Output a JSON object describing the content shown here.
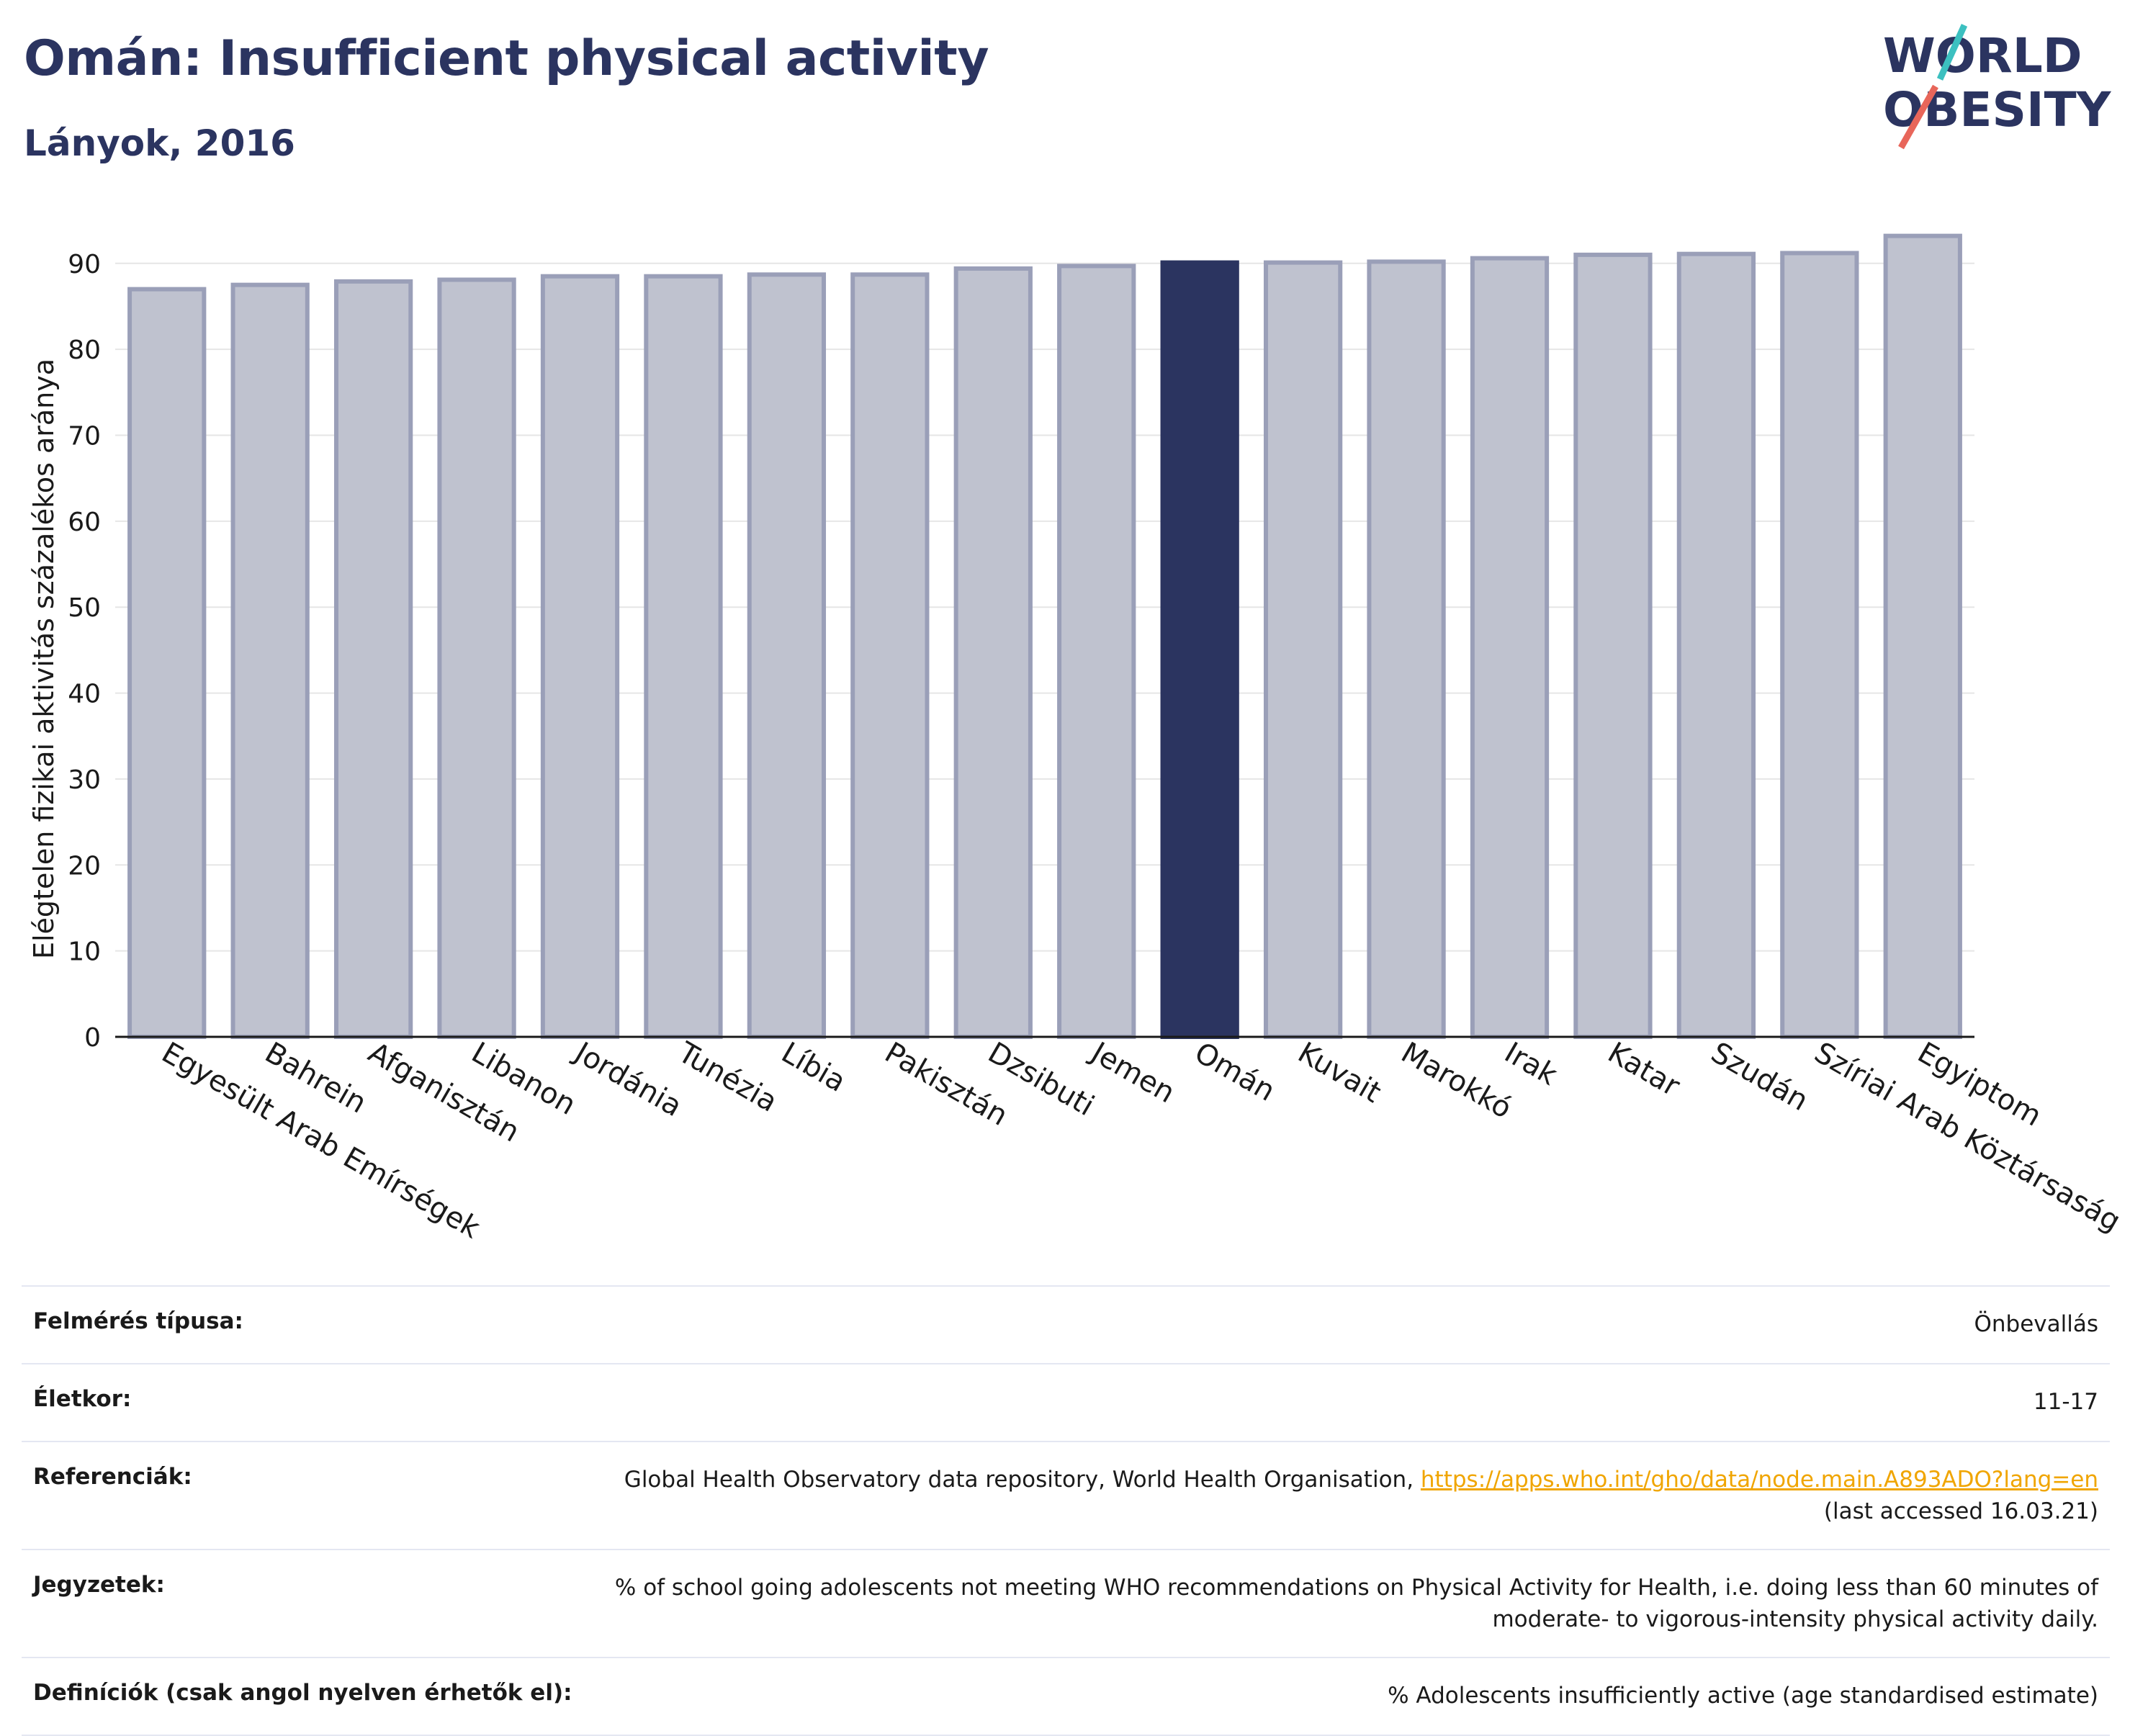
{
  "title": "Omán: Insufficient physical activity",
  "subtitle": "Lányok, 2016",
  "logo": {
    "line1": "WORLD",
    "line2": "OBESITY"
  },
  "colors": {
    "highlight": "#2b3460",
    "bar": "#bfc2cf",
    "bar_edge": "#9a9fb8",
    "grid": "#e6e6e6",
    "link": "#f0a500"
  },
  "chart_data": {
    "type": "bar",
    "title": "Omán: Insufficient physical activity",
    "subtitle": "Lányok, 2016",
    "ylabel": "Elégtelen fizikai aktivitás százalékos aránya",
    "xlabel": "",
    "ylim": [
      0,
      93
    ],
    "yticks": [
      0,
      10,
      20,
      30,
      40,
      50,
      60,
      70,
      80,
      90
    ],
    "grid": true,
    "highlight": "Omán",
    "categories": [
      "Egyesült Arab Emírségek",
      "Bahrein",
      "Afganisztán",
      "Libanon",
      "Jordánia",
      "Tunézia",
      "Líbia",
      "Pakisztán",
      "Dzsibuti",
      "Jemen",
      "Omán",
      "Kuvait",
      "Marokkó",
      "Irak",
      "Katar",
      "Szudán",
      "Szíriai Arab Köztársaság",
      "Egyiptom"
    ],
    "values": [
      87.0,
      87.5,
      87.9,
      88.1,
      88.5,
      88.5,
      88.7,
      88.7,
      89.4,
      89.7,
      90.1,
      90.1,
      90.2,
      90.6,
      91.0,
      91.1,
      91.2,
      93.2
    ]
  },
  "info": [
    {
      "key": "Felmérés típusa:",
      "value": "Önbevallás"
    },
    {
      "key": "Életkor:",
      "value": "11-17"
    },
    {
      "key": "Referenciák:",
      "value_pre": "Global Health Observatory data repository, World Health Organisation, ",
      "link": "https://apps.who.int/gho/data/node.main.A893ADO?lang=en",
      "value_post": "(last accessed 16.03.21)"
    },
    {
      "key": "Jegyzetek:",
      "value": "% of school going adolescents not meeting WHO recommendations on Physical Activity for Health, i.e. doing less than 60 minutes of moderate- to vigorous-intensity physical activity daily."
    },
    {
      "key": "Definíciók (csak angol nyelven érhetők el):",
      "value": "% Adolescents insufficiently active (age standardised estimate)"
    }
  ]
}
